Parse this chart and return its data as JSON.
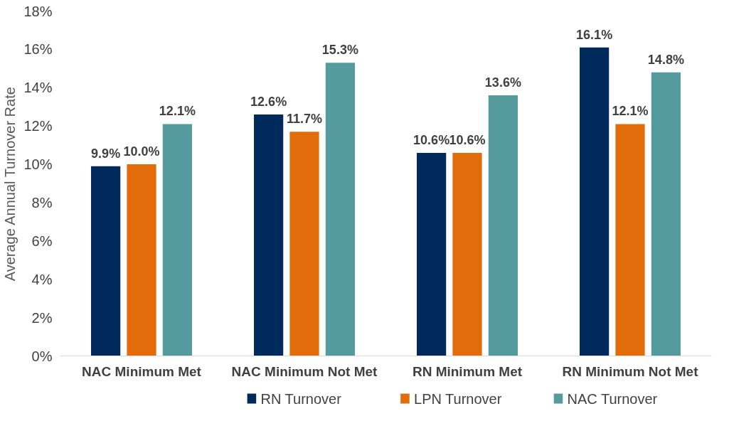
{
  "chart_data": {
    "type": "bar",
    "ylabel": "Average Annual Turnover Rate",
    "categories": [
      "NAC Minimum Met",
      "NAC Minimum Not Met",
      "RN Minimum Met",
      "RN Minimum Not Met"
    ],
    "series": [
      {
        "name": "RN Turnover",
        "color": "#002a5c",
        "values": [
          9.9,
          12.6,
          10.6,
          16.1
        ],
        "value_labels": [
          "9.9%",
          "12.6%",
          "10.6%",
          "16.1%"
        ]
      },
      {
        "name": "LPN Turnover",
        "color": "#e36c0a",
        "values": [
          10.0,
          11.7,
          10.6,
          12.1
        ],
        "value_labels": [
          "10.0%",
          "11.7%",
          "10.6%",
          "12.1%"
        ]
      },
      {
        "name": "NAC  Turnover",
        "color": "#559a9c",
        "values": [
          12.1,
          15.3,
          13.6,
          14.8
        ],
        "value_labels": [
          "12.1%",
          "15.3%",
          "13.6%",
          "14.8%"
        ]
      }
    ],
    "ylim": [
      0,
      18
    ],
    "yticks": [
      {
        "value": 0,
        "label": "0%"
      },
      {
        "value": 2,
        "label": "2%"
      },
      {
        "value": 4,
        "label": "4%"
      },
      {
        "value": 6,
        "label": "6%"
      },
      {
        "value": 8,
        "label": "8%"
      },
      {
        "value": 10,
        "label": "10%"
      },
      {
        "value": 12,
        "label": "12%"
      },
      {
        "value": 14,
        "label": "14%"
      },
      {
        "value": 16,
        "label": "16%"
      },
      {
        "value": 18,
        "label": "18%"
      }
    ],
    "grid": false,
    "legend": "bottom"
  }
}
